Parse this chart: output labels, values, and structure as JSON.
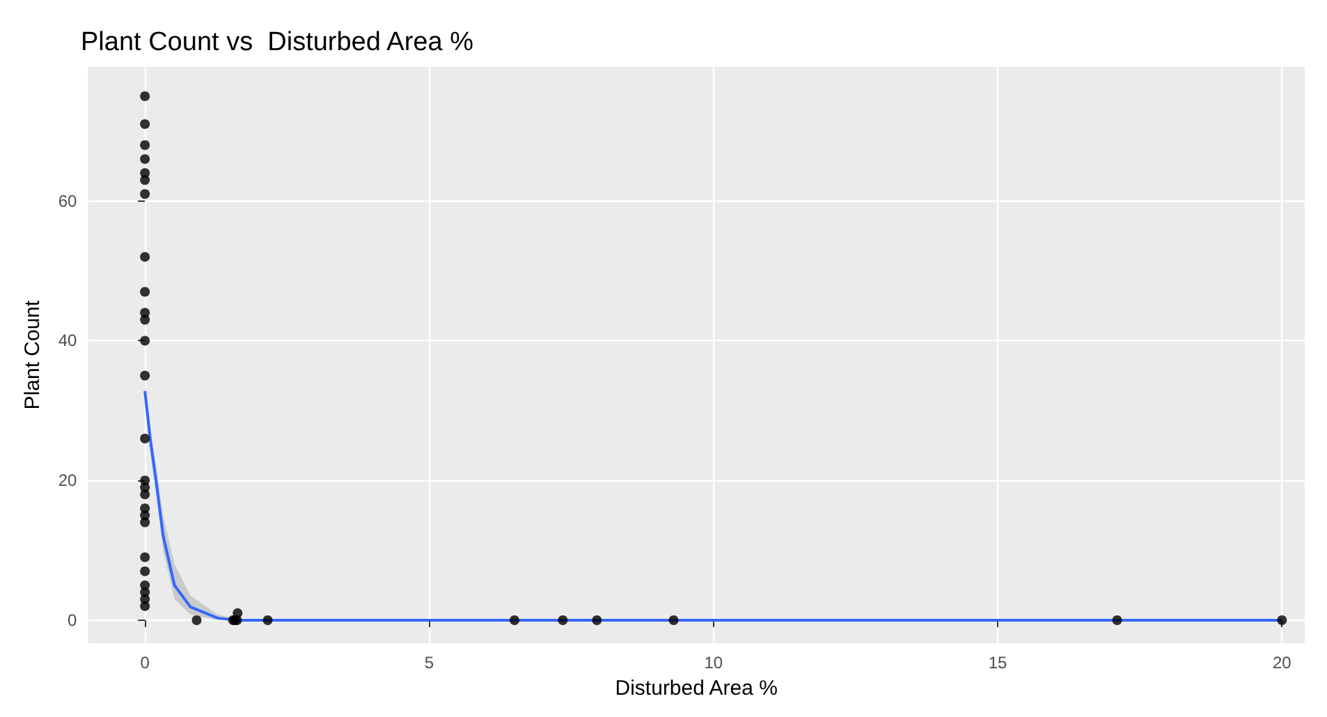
{
  "chart_data": {
    "type": "scatter",
    "title": "Plant Count vs  Disturbed Area %",
    "xlabel": "Disturbed Area %",
    "ylabel": "Plant Count",
    "xlim": [
      -1,
      20.4
    ],
    "ylim": [
      -3.3,
      79.2
    ],
    "xticks": [
      0,
      5,
      10,
      15,
      20
    ],
    "yticks": [
      0,
      20,
      40,
      60
    ],
    "grid": true,
    "marker": "circle",
    "series": [
      {
        "color": "#000000",
        "x": [
          0,
          0,
          0,
          0,
          0,
          0,
          0,
          0,
          0,
          0,
          0,
          0,
          0,
          0,
          0,
          0,
          0,
          0,
          0,
          0,
          0,
          0,
          0,
          0,
          0,
          0,
          0.91,
          1.55,
          1.58,
          1.62,
          1.63,
          2.16,
          6.5,
          7.35,
          7.95,
          9.3,
          17.1,
          20
        ],
        "values": [
          75,
          71,
          68,
          66,
          64,
          63,
          61,
          52,
          47,
          44,
          43,
          40,
          35,
          26,
          20,
          19,
          18,
          16,
          15,
          14,
          9,
          7,
          5,
          4,
          3,
          2,
          0,
          0,
          0,
          0,
          1,
          0,
          0,
          0,
          0,
          0,
          0,
          0
        ]
      },
      {
        "type": "line",
        "color": "#3366ff",
        "line_style": "solid",
        "marker": "none",
        "x": [
          0,
          0.1,
          0.2,
          0.32,
          0.52,
          0.8,
          1.28,
          1.6,
          2.2,
          5,
          10,
          15,
          20
        ],
        "values": [
          32.8,
          25.5,
          19.7,
          12.1,
          5,
          1.9,
          0.3,
          0,
          0,
          0,
          0,
          0,
          0
        ],
        "lower": [
          31,
          24,
          18,
          10,
          3,
          0.8,
          0,
          0,
          0,
          0,
          0,
          0,
          0
        ],
        "upper": [
          34,
          27,
          22,
          15,
          8,
          3.5,
          0.8,
          0.2,
          0,
          0,
          0,
          0,
          0
        ]
      }
    ]
  }
}
